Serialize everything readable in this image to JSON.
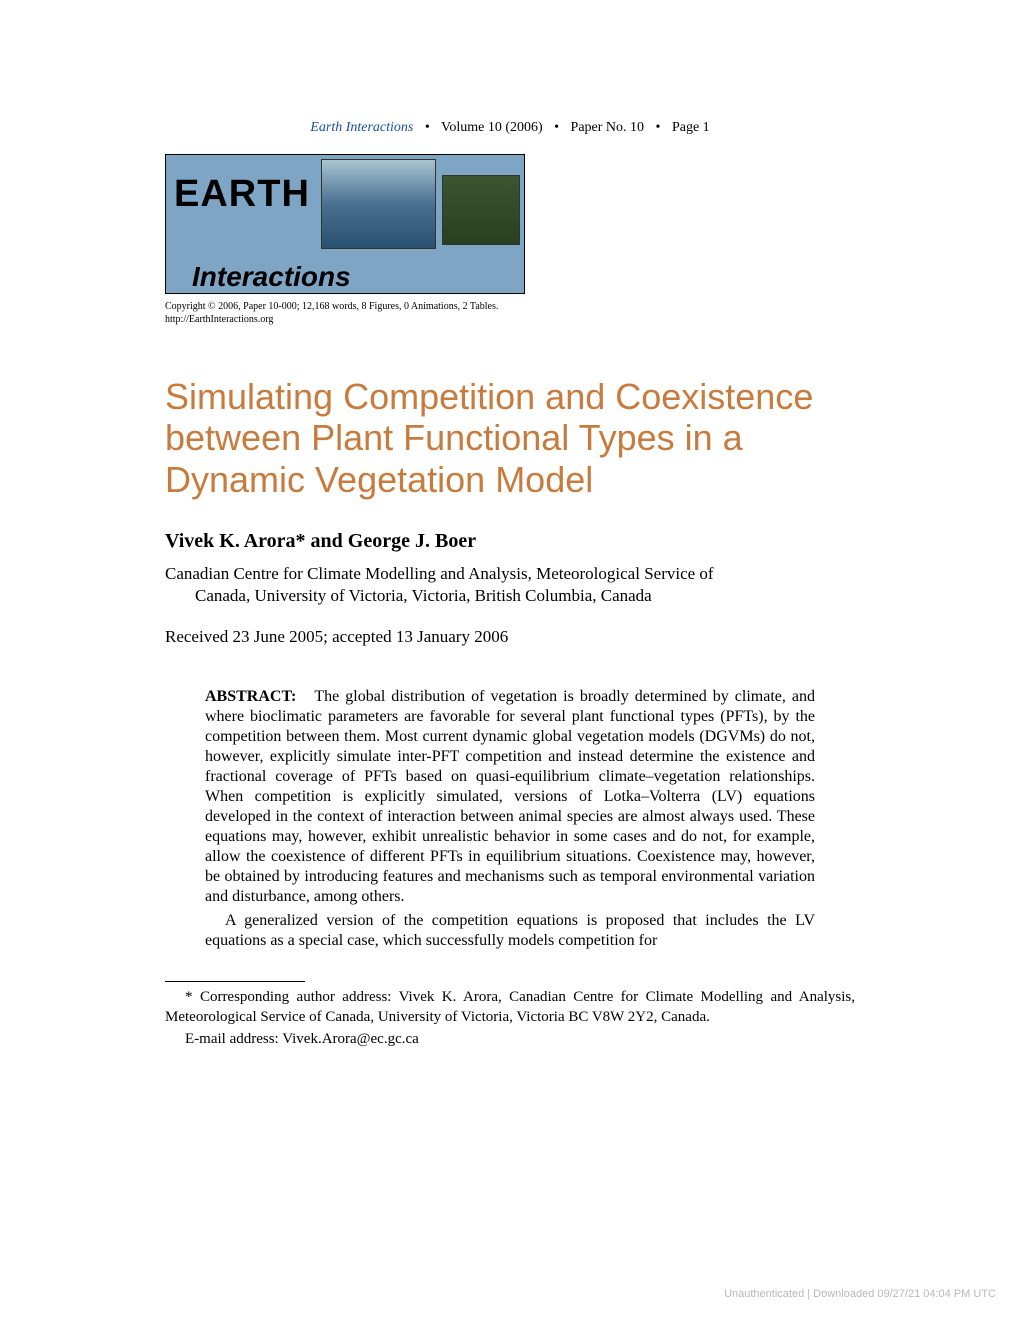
{
  "header": {
    "journal_name": "Earth Interactions",
    "volume": "Volume 10 (2006)",
    "paper_no": "Paper No. 10",
    "page": "Page 1",
    "separator": "•",
    "journal_name_color": "#1a4fa0"
  },
  "logo": {
    "text_top": "EARTH",
    "text_bottom": "Interactions",
    "bg_color": "#7fa5c4"
  },
  "copyright": {
    "line1": "Copyright © 2006, Paper 10-000; 12,168 words, 8 Figures, 0 Animations, 2 Tables.",
    "line2": "http://EarthInteractions.org"
  },
  "title": {
    "text": "Simulating Competition and Coexistence between Plant Functional Types in a Dynamic Vegetation Model",
    "color": "#c77b3e",
    "fontsize": 36
  },
  "authors": "Vivek K. Arora* and George J. Boer",
  "affiliation": {
    "line1": "Canadian Centre for Climate Modelling and Analysis, Meteorological Service of",
    "line2": "Canada, University of Victoria, Victoria, British Columbia, Canada"
  },
  "dates": "Received 23 June 2005; accepted 13 January 2006",
  "abstract": {
    "label": "ABSTRACT:",
    "para1": "The global distribution of vegetation is broadly determined by climate, and where bioclimatic parameters are favorable for several plant functional types (PFTs), by the competition between them. Most current dynamic global vegetation models (DGVMs) do not, however, explicitly simulate inter-PFT competition and instead determine the existence and fractional coverage of PFTs based on quasi-equilibrium climate–vegetation relationships. When competition is explicitly simulated, versions of Lotka–Volterra (LV) equations developed in the context of interaction between animal species are almost always used. These equations may, however, exhibit unrealistic behavior in some cases and do not, for example, allow the coexistence of different PFTs in equilibrium situations. Coexistence may, however, be obtained by introducing features and mechanisms such as temporal environmental variation and disturbance, among others.",
    "para2": "A generalized version of the competition equations is proposed that includes the LV equations as a special case, which successfully models competition for"
  },
  "footnote": {
    "address": "* Corresponding author address: Vivek K. Arora, Canadian Centre for Climate Modelling and Analysis, Meteorological Service of Canada, University of Victoria, Victoria BC V8W 2Y2, Canada.",
    "email": "E-mail address: Vivek.Arora@ec.gc.ca"
  },
  "footer": {
    "watermark": "Unauthenticated | Downloaded 09/27/21 04:04 PM UTC",
    "color": "#b8b8b8"
  },
  "colors": {
    "background": "#ffffff",
    "text": "#000000"
  }
}
